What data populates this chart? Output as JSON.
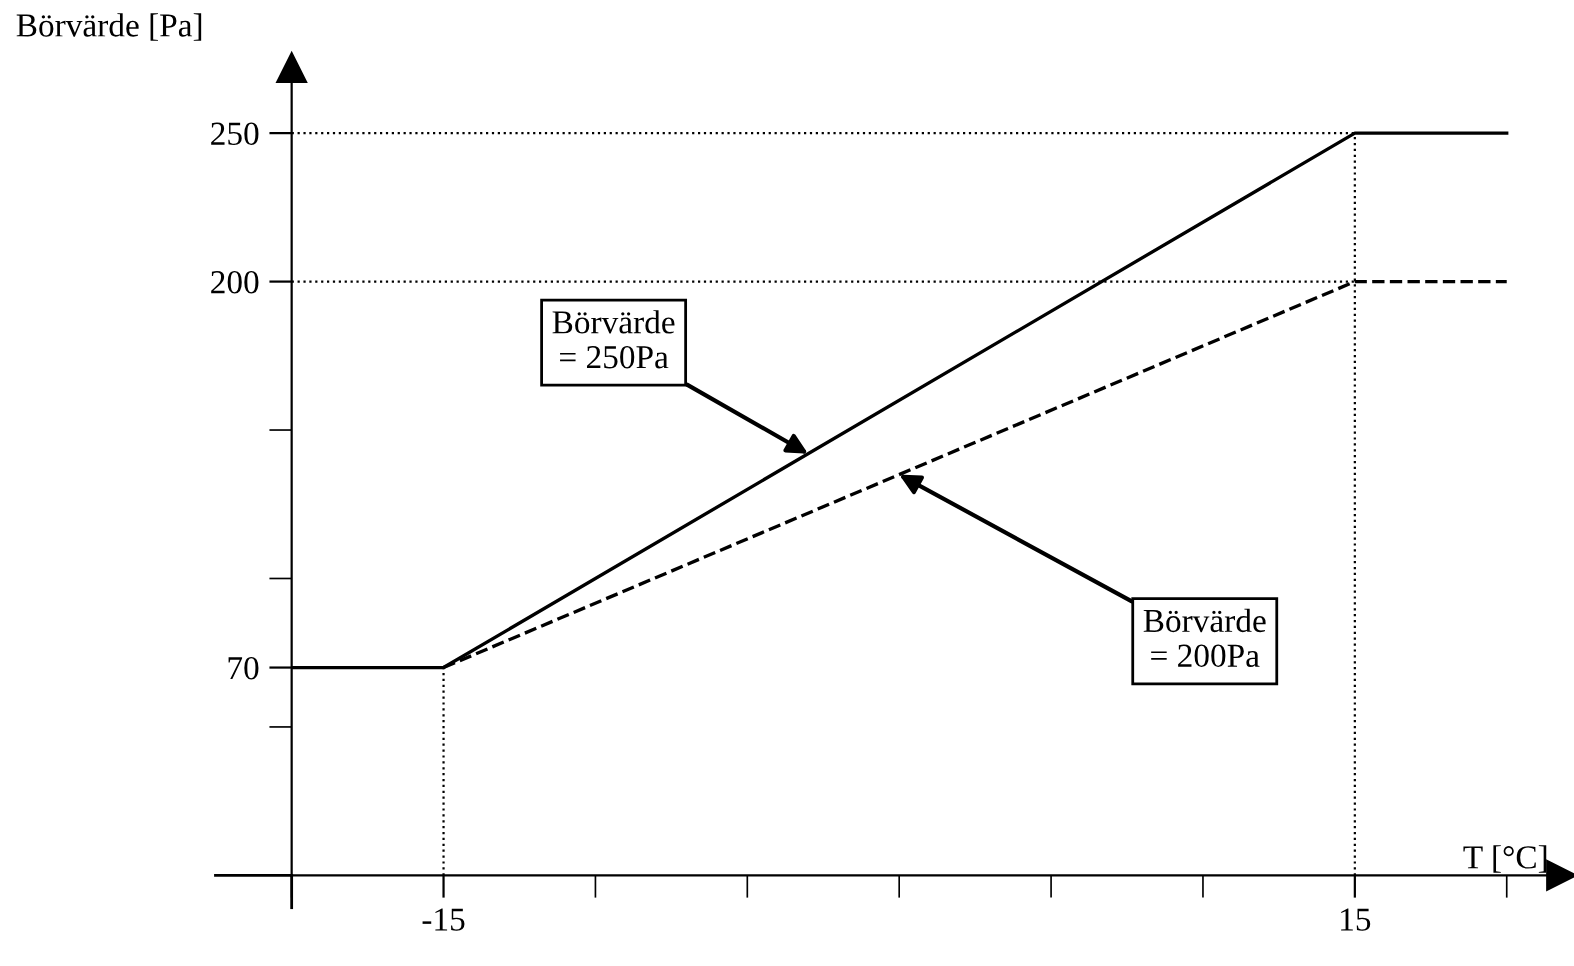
{
  "chart_data": {
    "type": "line",
    "xlabel": "T [°C]",
    "ylabel": "Börvärde [Pa]",
    "series": [
      {
        "color": "#000000",
        "line_style": "solid",
        "x": [
          -20,
          -15,
          15,
          20
        ],
        "values": [
          70,
          70,
          250,
          250
        ]
      },
      {
        "color": "#000000",
        "line_style": "dashed",
        "x": [
          -15,
          15,
          20
        ],
        "values": [
          70,
          200,
          200
        ]
      }
    ],
    "xlim": [
      -20,
      21.8
    ],
    "ylim": [
      0,
      272
    ],
    "xticks": [
      {
        "value": -20,
        "label": null
      },
      -15,
      {
        "value": -10,
        "label": null
      },
      {
        "value": -5,
        "label": null
      },
      {
        "value": 0,
        "label": null
      },
      {
        "value": 5,
        "label": null
      },
      {
        "value": 10,
        "label": null
      },
      15,
      {
        "value": 20,
        "label": null
      }
    ],
    "yticks": [
      {
        "value": 50,
        "label": null
      },
      70,
      {
        "value": 100,
        "label": null
      },
      {
        "value": 150,
        "label": null
      },
      200,
      250
    ],
    "ref_lines": [
      {
        "axis": "y",
        "value": 250,
        "line_style": "dotted"
      },
      {
        "axis": "y",
        "value": 200,
        "line_style": "dotted"
      },
      {
        "axis": "x",
        "value": -15,
        "line_style": "dotted"
      },
      {
        "axis": "x",
        "value": 15,
        "line_style": "dotted"
      }
    ],
    "annotations": [
      {
        "text": "Börvärde\n= 250Pa",
        "x": -3,
        "y": 142
      },
      {
        "text": "Börvärde\n= 200Pa",
        "x": 0,
        "y": 135
      }
    ],
    "grid": false,
    "legend": false,
    "marker": "none"
  }
}
